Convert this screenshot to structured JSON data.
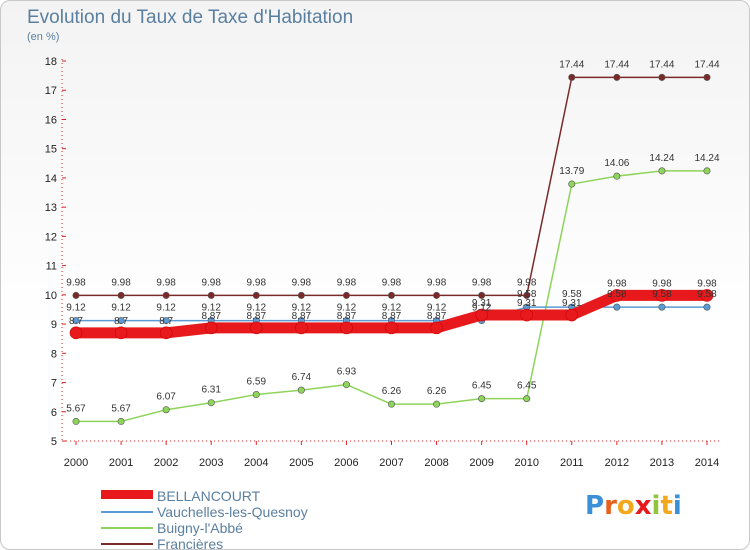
{
  "header": {
    "title": "Evolution du Taux de Taxe d'Habitation",
    "subtitle": "(en %)"
  },
  "chart_data": {
    "type": "line",
    "title": "Evolution du Taux de Taxe d'Habitation",
    "ylabel": "(en %)",
    "xlabel": "",
    "categories": [
      "2000",
      "2001",
      "2002",
      "2003",
      "2004",
      "2005",
      "2006",
      "2007",
      "2008",
      "2009",
      "2010",
      "2011",
      "2012",
      "2013",
      "2014"
    ],
    "ylim": [
      5,
      18
    ],
    "yticks": [
      5,
      6,
      7,
      8,
      9,
      10,
      11,
      12,
      13,
      14,
      15,
      16,
      17,
      18
    ],
    "grid": false,
    "legend_position": "bottom-left",
    "series": [
      {
        "name": "BELLANCOURT",
        "color": "#e8191c",
        "values": [
          8.7,
          8.7,
          8.7,
          8.87,
          8.87,
          8.87,
          8.87,
          8.87,
          8.87,
          9.31,
          9.31,
          9.31,
          9.98,
          9.98,
          9.98
        ],
        "labels": [
          "8.7",
          "8.7",
          "8.7",
          "8.87",
          "8.87",
          "8.87",
          "8.87",
          "8.87",
          "8.87",
          "9.31",
          "9.31",
          "9.31",
          "9.98",
          "9.98",
          "9.98"
        ]
      },
      {
        "name": "Vauchelles-les-Quesnoy",
        "color": "#5b9bd5",
        "values": [
          9.12,
          9.12,
          9.12,
          9.12,
          9.12,
          9.12,
          9.12,
          9.12,
          9.12,
          9.12,
          9.58,
          9.58,
          9.58,
          9.58,
          9.58
        ],
        "labels": [
          "9.12",
          "9.12",
          "9.12",
          "9.12",
          "9.12",
          "9.12",
          "9.12",
          "9.12",
          "9.12",
          "9.12",
          "9.58",
          "9.58",
          "9.58",
          "9.58",
          "9.58"
        ]
      },
      {
        "name": "Buigny-l'Abbé",
        "color": "#8fd45a",
        "values": [
          5.67,
          5.67,
          6.07,
          6.31,
          6.59,
          6.74,
          6.93,
          6.26,
          6.26,
          6.45,
          6.45,
          13.79,
          14.06,
          14.24,
          14.24
        ],
        "labels": [
          "5.67",
          "5.67",
          "6.07",
          "6.31",
          "6.59",
          "6.74",
          "6.93",
          "6.26",
          "6.26",
          "6.45",
          "6.45",
          "13.79",
          "14.06",
          "14.24",
          "14.24"
        ]
      },
      {
        "name": "Francières",
        "color": "#7b2a2a",
        "values": [
          9.98,
          9.98,
          9.98,
          9.98,
          9.98,
          9.98,
          9.98,
          9.98,
          9.98,
          9.98,
          9.98,
          17.44,
          17.44,
          17.44,
          17.44
        ],
        "labels": [
          "9.98",
          "9.98",
          "9.98",
          "9.98",
          "9.98",
          "9.98",
          "9.98",
          "9.98",
          "9.98",
          "9.98",
          "9.98",
          "17.44",
          "17.44",
          "17.44",
          "17.44"
        ]
      }
    ]
  },
  "brand": {
    "text": "Proxiti"
  }
}
